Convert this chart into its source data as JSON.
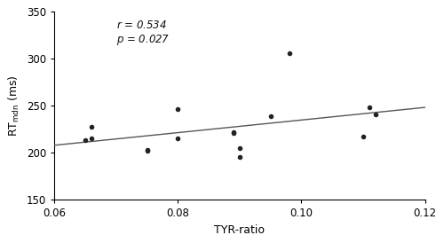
{
  "x_data": [
    0.065,
    0.066,
    0.066,
    0.075,
    0.075,
    0.08,
    0.08,
    0.089,
    0.089,
    0.09,
    0.09,
    0.095,
    0.098,
    0.11,
    0.111,
    0.112
  ],
  "y_data": [
    213,
    228,
    215,
    202,
    203,
    246,
    215,
    221,
    222,
    195,
    205,
    239,
    306,
    217,
    248,
    241
  ],
  "r_value": 0.534,
  "p_value": 0.027,
  "xlabel": "TYR-ratio",
  "xlim": [
    0.06,
    0.12
  ],
  "ylim": [
    150,
    350
  ],
  "xticks": [
    0.06,
    0.08,
    0.1,
    0.12
  ],
  "yticks": [
    150,
    200,
    250,
    300,
    350
  ],
  "dot_color": "#222222",
  "line_color": "#555555",
  "background_color": "#ffffff"
}
